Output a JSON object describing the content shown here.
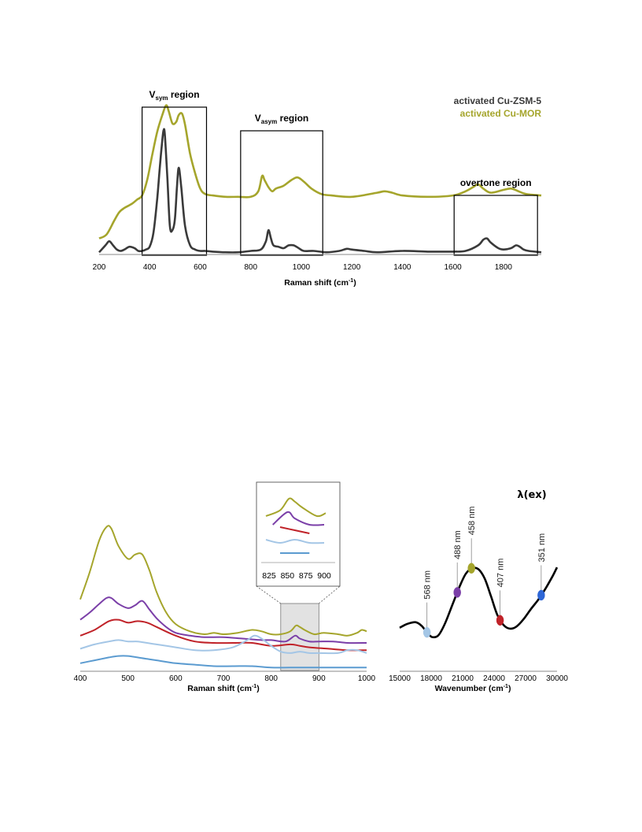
{
  "colors": {
    "zsm": "#3a3a3a",
    "mor": "#a5a52c",
    "series_bottom": [
      "#a5a52c",
      "#7b3fa8",
      "#c02228",
      "#a4c6e6",
      "#5b9bd0"
    ],
    "curve": "#000000",
    "inset_box": "#d3d3d3"
  },
  "chart_data": [
    {
      "id": "top",
      "type": "line",
      "xlabel": "Raman shift (cm",
      "xlabel_sup": "-1",
      "xlabel_end": ")",
      "xlim": [
        200,
        1950
      ],
      "xticks": [
        "200",
        "400",
        "600",
        "800",
        "1000",
        "1200",
        "1400",
        "1600",
        "1800"
      ],
      "legend": [
        "activated Cu-ZSM-5",
        "activated Cu-MOR"
      ],
      "legend_position": "top-right",
      "regions": [
        {
          "label_main": "V",
          "label_sub": "sym",
          "label_rest": " region",
          "x": [
            370,
            625
          ]
        },
        {
          "label_main": "V",
          "label_sub": "asym",
          "label_rest": " region",
          "x": [
            760,
            1085
          ]
        },
        {
          "label_main": "overtone region",
          "label_sub": "",
          "label_rest": "",
          "x": [
            1605,
            1935
          ]
        }
      ],
      "series": [
        {
          "name": "activated Cu-ZSM-5",
          "x": [
            200,
            225,
            240,
            255,
            270,
            285,
            300,
            320,
            340,
            355,
            370,
            385,
            400,
            415,
            430,
            440,
            450,
            455,
            460,
            470,
            480,
            490,
            500,
            508,
            515,
            525,
            540,
            560,
            580,
            600,
            620,
            650,
            700,
            750,
            800,
            840,
            860,
            870,
            880,
            890,
            910,
            930,
            950,
            970,
            990,
            1010,
            1050,
            1100,
            1150,
            1180,
            1200,
            1250,
            1300,
            1400,
            1500,
            1600,
            1650,
            1700,
            1720,
            1735,
            1750,
            1780,
            1800,
            1830,
            1850,
            1865,
            1880,
            1900,
            1950
          ],
          "y": [
            0.01,
            0.06,
            0.09,
            0.06,
            0.03,
            0.02,
            0.03,
            0.05,
            0.04,
            0.02,
            0.02,
            0.03,
            0.05,
            0.15,
            0.4,
            0.62,
            0.82,
            0.89,
            0.86,
            0.55,
            0.2,
            0.17,
            0.25,
            0.48,
            0.62,
            0.48,
            0.2,
            0.06,
            0.03,
            0.02,
            0.02,
            0.015,
            0.01,
            0.01,
            0.02,
            0.03,
            0.09,
            0.17,
            0.11,
            0.06,
            0.05,
            0.04,
            0.06,
            0.06,
            0.04,
            0.02,
            0.02,
            0.01,
            0.02,
            0.035,
            0.03,
            0.02,
            0.01,
            0.02,
            0.015,
            0.015,
            0.02,
            0.06,
            0.1,
            0.11,
            0.08,
            0.04,
            0.03,
            0.04,
            0.06,
            0.05,
            0.03,
            0.02,
            0.01
          ]
        },
        {
          "name": "activated Cu-MOR",
          "x": [
            200,
            230,
            260,
            280,
            300,
            330,
            350,
            370,
            390,
            410,
            430,
            450,
            465,
            475,
            490,
            505,
            515,
            528,
            540,
            560,
            580,
            600,
            620,
            650,
            700,
            750,
            800,
            830,
            845,
            855,
            870,
            885,
            900,
            930,
            960,
            985,
            1010,
            1040,
            1080,
            1120,
            1200,
            1300,
            1330,
            1360,
            1400,
            1500,
            1600,
            1650,
            1680,
            1700,
            1720,
            1750,
            1800,
            1830,
            1860,
            1890,
            1950
          ],
          "y": [
            0.11,
            0.14,
            0.24,
            0.3,
            0.33,
            0.36,
            0.39,
            0.42,
            0.53,
            0.71,
            0.88,
            1.0,
            1.07,
            1.03,
            0.94,
            0.95,
            1.0,
            1.01,
            0.93,
            0.72,
            0.58,
            0.47,
            0.43,
            0.42,
            0.41,
            0.41,
            0.41,
            0.45,
            0.56,
            0.53,
            0.48,
            0.45,
            0.47,
            0.49,
            0.53,
            0.55,
            0.52,
            0.47,
            0.43,
            0.42,
            0.41,
            0.44,
            0.45,
            0.44,
            0.42,
            0.41,
            0.42,
            0.45,
            0.48,
            0.5,
            0.47,
            0.44,
            0.46,
            0.47,
            0.45,
            0.43,
            0.42
          ]
        }
      ]
    },
    {
      "id": "bottom_left",
      "type": "line",
      "xlabel": "Raman shift (cm",
      "xlabel_sup": "-1",
      "xlabel_end": ")",
      "xlim": [
        400,
        1000
      ],
      "xticks": [
        "400",
        "500",
        "600",
        "700",
        "800",
        "900",
        "1000"
      ],
      "shaded_region": [
        820,
        900
      ],
      "inset": {
        "xlim": [
          815,
          905
        ],
        "xticks": [
          "825",
          "850",
          "875",
          "900"
        ]
      },
      "series": [
        {
          "x": [
            400,
            420,
            440,
            455,
            465,
            480,
            500,
            515,
            530,
            545,
            560,
            580,
            600,
            630,
            660,
            680,
            700,
            730,
            760,
            780,
            800,
            820,
            840,
            852,
            860,
            870,
            890,
            910,
            940,
            960,
            980,
            990,
            1000
          ],
          "y": [
            0.49,
            0.68,
            0.9,
            0.99,
            0.98,
            0.86,
            0.77,
            0.8,
            0.8,
            0.69,
            0.54,
            0.4,
            0.32,
            0.27,
            0.25,
            0.26,
            0.25,
            0.26,
            0.28,
            0.27,
            0.25,
            0.25,
            0.27,
            0.31,
            0.3,
            0.28,
            0.25,
            0.26,
            0.25,
            0.24,
            0.26,
            0.28,
            0.27
          ]
        },
        {
          "x": [
            400,
            420,
            440,
            455,
            465,
            480,
            500,
            515,
            530,
            545,
            560,
            580,
            600,
            630,
            660,
            700,
            740,
            780,
            800,
            830,
            850,
            860,
            880,
            900,
            930,
            960,
            1000
          ],
          "y": [
            0.35,
            0.4,
            0.46,
            0.5,
            0.5,
            0.46,
            0.43,
            0.45,
            0.48,
            0.42,
            0.36,
            0.3,
            0.26,
            0.24,
            0.23,
            0.23,
            0.22,
            0.21,
            0.21,
            0.2,
            0.24,
            0.22,
            0.2,
            0.2,
            0.2,
            0.19,
            0.19
          ]
        },
        {
          "x": [
            400,
            430,
            460,
            480,
            500,
            520,
            540,
            560,
            600,
            640,
            680,
            720,
            760,
            800,
            840,
            860,
            880,
            920,
            960,
            1000
          ],
          "y": [
            0.24,
            0.28,
            0.34,
            0.35,
            0.33,
            0.34,
            0.33,
            0.3,
            0.24,
            0.2,
            0.19,
            0.19,
            0.19,
            0.17,
            0.18,
            0.17,
            0.16,
            0.15,
            0.14,
            0.14
          ]
        },
        {
          "x": [
            400,
            430,
            460,
            480,
            500,
            520,
            540,
            560,
            600,
            640,
            680,
            720,
            750,
            765,
            780,
            800,
            820,
            840,
            860,
            880,
            900,
            940,
            960,
            980,
            1000
          ],
          "y": [
            0.15,
            0.18,
            0.2,
            0.21,
            0.2,
            0.2,
            0.19,
            0.18,
            0.16,
            0.14,
            0.14,
            0.16,
            0.21,
            0.24,
            0.22,
            0.17,
            0.13,
            0.12,
            0.13,
            0.12,
            0.12,
            0.12,
            0.14,
            0.14,
            0.12
          ]
        },
        {
          "x": [
            400,
            430,
            460,
            480,
            500,
            520,
            540,
            560,
            600,
            640,
            680,
            720,
            760,
            800,
            840,
            880,
            920,
            960,
            1000
          ],
          "y": [
            0.05,
            0.07,
            0.09,
            0.1,
            0.1,
            0.09,
            0.08,
            0.07,
            0.05,
            0.04,
            0.03,
            0.03,
            0.03,
            0.02,
            0.02,
            0.02,
            0.02,
            0.02,
            0.02
          ]
        }
      ]
    },
    {
      "id": "bottom_right",
      "type": "line",
      "title": "λ(ex)",
      "xlabel": "Wavenumber (cm",
      "xlabel_sup": "-1",
      "xlabel_end": ")",
      "xlim": [
        15000,
        30000
      ],
      "xticks": [
        "15000",
        "18000",
        "21000",
        "24000",
        "27000",
        "30000"
      ],
      "curve": {
        "x": [
          15000,
          15700,
          16500,
          17100,
          17600,
          18100,
          18700,
          19300,
          20000,
          20700,
          21300,
          21900,
          22500,
          23100,
          23700,
          24300,
          24900,
          25500,
          26100,
          26800,
          27500,
          28200,
          28900,
          29600,
          30000
        ],
        "y": [
          0.18,
          0.22,
          0.24,
          0.2,
          0.13,
          0.08,
          0.1,
          0.22,
          0.42,
          0.62,
          0.76,
          0.82,
          0.81,
          0.71,
          0.52,
          0.32,
          0.21,
          0.17,
          0.19,
          0.27,
          0.38,
          0.48,
          0.6,
          0.74,
          0.83
        ]
      },
      "markers": [
        {
          "label": "568 nm",
          "x": 17600,
          "y": 0.13,
          "color": "#a4c6e6"
        },
        {
          "label": "488 nm",
          "x": 20490,
          "y": 0.56,
          "color": "#7b3fa8"
        },
        {
          "label": "458 nm",
          "x": 21840,
          "y": 0.82,
          "color": "#a5a52c"
        },
        {
          "label": "407 nm",
          "x": 24570,
          "y": 0.26,
          "color": "#c02228"
        },
        {
          "label": "351 nm",
          "x": 28490,
          "y": 0.53,
          "color": "#2e66d6"
        }
      ]
    }
  ]
}
